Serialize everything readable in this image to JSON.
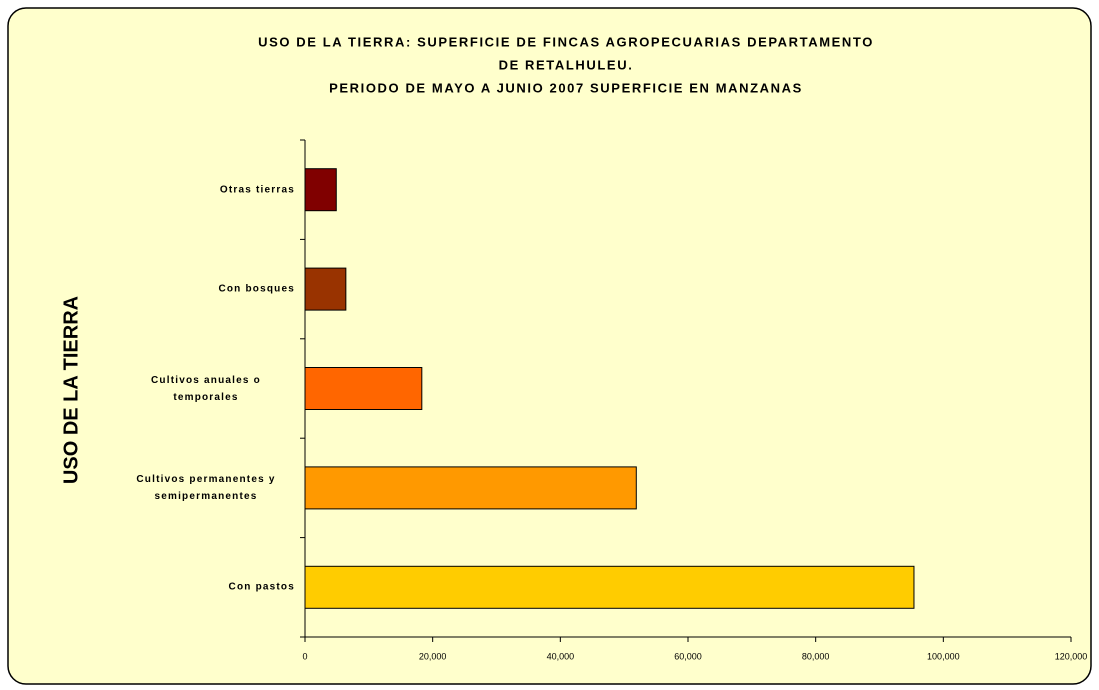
{
  "chart_data": {
    "type": "barh",
    "title": [
      "USO DE LA TIERRA: SUPERFICIE DE FINCAS AGROPECUARIAS DEPARTAMENTO",
      "DE RETALHULEU.",
      "PERIODO DE MAYO A JUNIO 2007 SUPERFICIE EN MANZANAS"
    ],
    "ylabel": "USO DE LA TIERRA",
    "categories": [
      "Otras tierras",
      "Con bosques",
      "Cultivos anuales o temporales",
      "Cultivos permanentes y semipermanentes",
      "Con pastos"
    ],
    "values": [
      4900,
      6400,
      18300,
      51900,
      95400
    ],
    "colors": [
      "#800000",
      "#993300",
      "#ff6600",
      "#ff9900",
      "#ffcc00"
    ],
    "xlim": [
      0,
      120000
    ],
    "xticks": [
      0,
      {
        "value": 20000,
        "label": "20,000"
      },
      {
        "value": 40000,
        "label": "40,000"
      },
      {
        "value": 60000,
        "label": "60,000"
      },
      {
        "value": 80000,
        "label": "80,000"
      },
      {
        "value": 100000,
        "label": "100,000"
      },
      {
        "value": 120000,
        "label": "120,000"
      }
    ]
  }
}
